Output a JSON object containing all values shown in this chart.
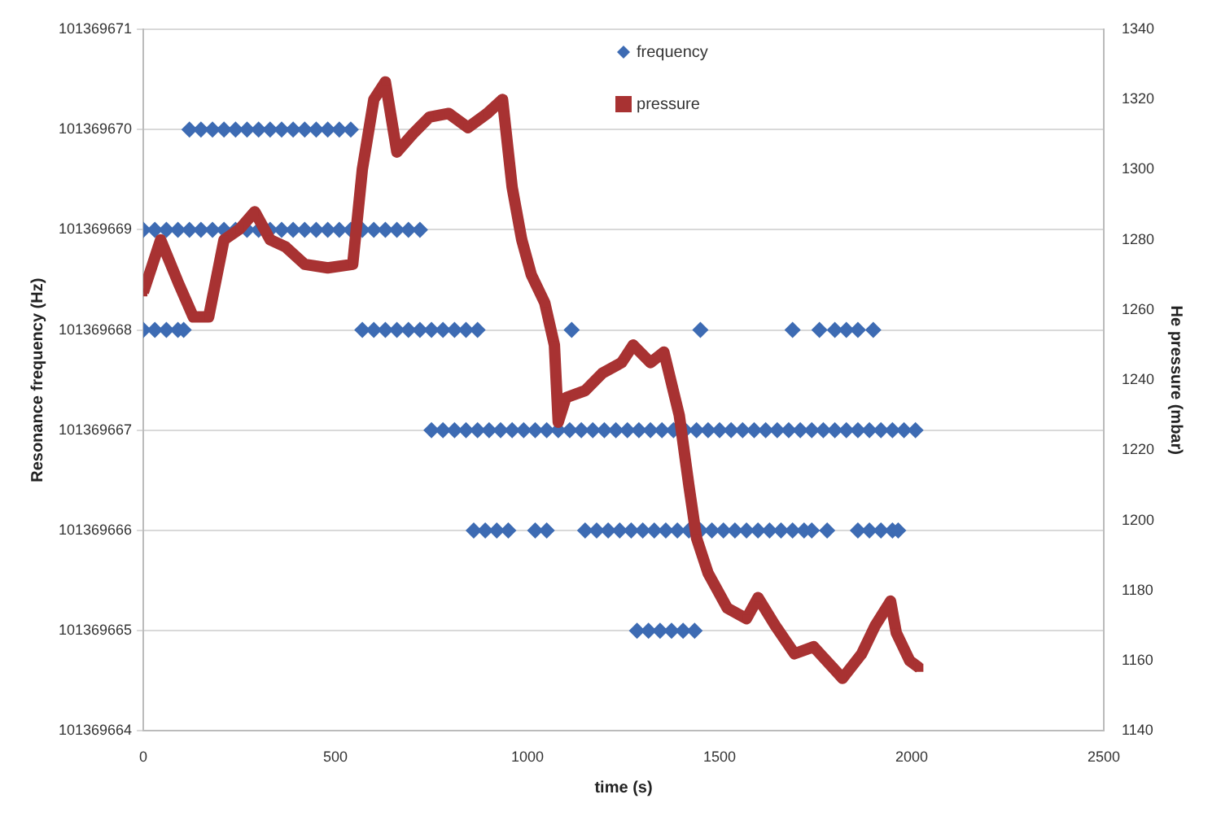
{
  "chart_data": {
    "type": "scatter",
    "xlabel": "time (s)",
    "ylabel": "Resonance frequency (Hz)",
    "y2label": "He pressure (mbar)",
    "xlim": [
      0,
      2500
    ],
    "xticks": [
      0,
      500,
      1000,
      1500,
      2000,
      2500
    ],
    "ylim": [
      101369664,
      101369671
    ],
    "yticks": [
      101369664,
      101369665,
      101369666,
      101369667,
      101369668,
      101369669,
      101369670,
      101369671
    ],
    "y2lim": [
      1140,
      1340
    ],
    "y2ticks": [
      1140,
      1160,
      1180,
      1200,
      1220,
      1240,
      1260,
      1280,
      1300,
      1320,
      1340
    ],
    "grid": "y",
    "legend": "top",
    "series": [
      {
        "name": "frequency",
        "type": "scatter",
        "marker": "diamond",
        "color": "#3d6bb3",
        "x": [
          120,
          150,
          180,
          210,
          240,
          270,
          300,
          330,
          360,
          390,
          420,
          450,
          480,
          510,
          540,
          0,
          30,
          60,
          90,
          120,
          150,
          180,
          210,
          240,
          270,
          300,
          330,
          360,
          390,
          420,
          450,
          480,
          510,
          540,
          570,
          600,
          630,
          660,
          690,
          720,
          0,
          30,
          60,
          90,
          105,
          570,
          600,
          630,
          660,
          690,
          720,
          750,
          780,
          810,
          840,
          870,
          1115,
          1450,
          1690,
          1760,
          1800,
          1830,
          1860,
          1900,
          750,
          780,
          810,
          840,
          870,
          900,
          930,
          960,
          990,
          1020,
          1050,
          1080,
          1110,
          1140,
          1170,
          1200,
          1230,
          1260,
          1290,
          1320,
          1350,
          1380,
          1410,
          1440,
          1470,
          1500,
          1530,
          1560,
          1590,
          1620,
          1650,
          1680,
          1710,
          1740,
          1770,
          1800,
          1830,
          1860,
          1890,
          1920,
          1950,
          1980,
          2010,
          860,
          890,
          920,
          950,
          1020,
          1050,
          1150,
          1180,
          1210,
          1240,
          1270,
          1300,
          1330,
          1360,
          1390,
          1420,
          1450,
          1480,
          1510,
          1540,
          1570,
          1600,
          1630,
          1660,
          1690,
          1720,
          1740,
          1780,
          1860,
          1890,
          1920,
          1950,
          1965,
          1285,
          1315,
          1345,
          1375,
          1405,
          1435
        ],
        "values": [
          101369670,
          101369670,
          101369670,
          101369670,
          101369670,
          101369670,
          101369670,
          101369670,
          101369670,
          101369670,
          101369670,
          101369670,
          101369670,
          101369670,
          101369670,
          101369669,
          101369669,
          101369669,
          101369669,
          101369669,
          101369669,
          101369669,
          101369669,
          101369669,
          101369669,
          101369669,
          101369669,
          101369669,
          101369669,
          101369669,
          101369669,
          101369669,
          101369669,
          101369669,
          101369669,
          101369669,
          101369669,
          101369669,
          101369669,
          101369669,
          101369668,
          101369668,
          101369668,
          101369668,
          101369668,
          101369668,
          101369668,
          101369668,
          101369668,
          101369668,
          101369668,
          101369668,
          101369668,
          101369668,
          101369668,
          101369668,
          101369668,
          101369668,
          101369668,
          101369668,
          101369668,
          101369668,
          101369668,
          101369668,
          101369667,
          101369667,
          101369667,
          101369667,
          101369667,
          101369667,
          101369667,
          101369667,
          101369667,
          101369667,
          101369667,
          101369667,
          101369667,
          101369667,
          101369667,
          101369667,
          101369667,
          101369667,
          101369667,
          101369667,
          101369667,
          101369667,
          101369667,
          101369667,
          101369667,
          101369667,
          101369667,
          101369667,
          101369667,
          101369667,
          101369667,
          101369667,
          101369667,
          101369667,
          101369667,
          101369667,
          101369667,
          101369667,
          101369667,
          101369667,
          101369667,
          101369667,
          101369667,
          101369666,
          101369666,
          101369666,
          101369666,
          101369666,
          101369666,
          101369666,
          101369666,
          101369666,
          101369666,
          101369666,
          101369666,
          101369666,
          101369666,
          101369666,
          101369666,
          101369666,
          101369666,
          101369666,
          101369666,
          101369666,
          101369666,
          101369666,
          101369666,
          101369666,
          101369666,
          101369666,
          101369666,
          101369666,
          101369666,
          101369666,
          101369666,
          101369666,
          101369665,
          101369665,
          101369665,
          101369665,
          101369665,
          101369665
        ]
      },
      {
        "name": "pressure",
        "type": "line",
        "axis": "y2",
        "marker": "square",
        "color": "#a83232",
        "x": [
          0,
          45,
          90,
          130,
          170,
          210,
          250,
          290,
          330,
          370,
          420,
          480,
          545,
          570,
          600,
          630,
          660,
          700,
          745,
          795,
          845,
          895,
          935,
          960,
          985,
          1010,
          1045,
          1070,
          1080,
          1100,
          1150,
          1195,
          1245,
          1275,
          1320,
          1355,
          1395,
          1420,
          1440,
          1470,
          1520,
          1570,
          1600,
          1645,
          1695,
          1745,
          1795,
          1820,
          1870,
          1905,
          1945,
          1960,
          1995,
          2020
        ],
        "values": [
          1265,
          1280,
          1268,
          1258,
          1258,
          1280,
          1283,
          1288,
          1280,
          1278,
          1273,
          1272,
          1273,
          1300,
          1320,
          1325,
          1305,
          1310,
          1315,
          1316,
          1312,
          1316,
          1320,
          1295,
          1280,
          1270,
          1262,
          1250,
          1228,
          1235,
          1237,
          1242,
          1245,
          1250,
          1245,
          1248,
          1230,
          1210,
          1195,
          1185,
          1175,
          1172,
          1178,
          1170,
          1162,
          1164,
          1158,
          1155,
          1162,
          1170,
          1177,
          1168,
          1160,
          1158
        ]
      }
    ]
  }
}
